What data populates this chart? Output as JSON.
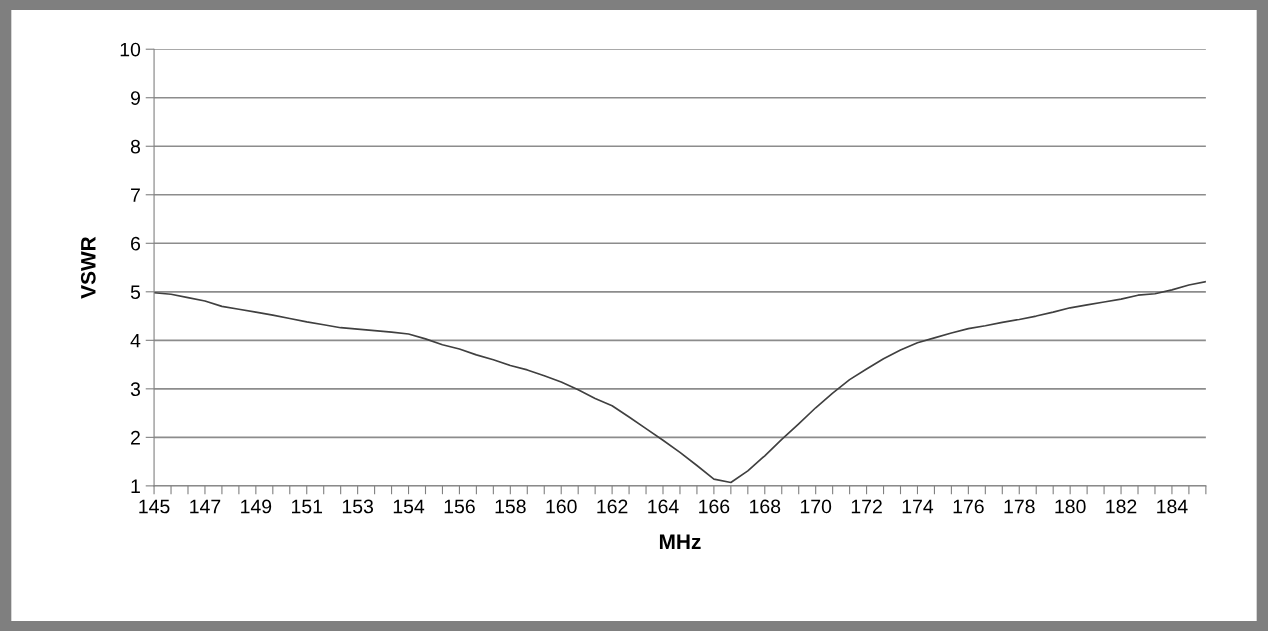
{
  "chart_data": {
    "type": "line",
    "xlabel": "MHz",
    "ylabel": "VSWR",
    "categories": [
      "145",
      null,
      null,
      "147",
      null,
      null,
      "149",
      null,
      null,
      "151",
      null,
      null,
      "153",
      null,
      null,
      "154",
      null,
      null,
      "156",
      null,
      null,
      "158",
      null,
      null,
      "160",
      null,
      null,
      "162",
      null,
      null,
      "164",
      null,
      null,
      "166",
      null,
      null,
      "168",
      null,
      null,
      "170",
      null,
      null,
      "172",
      null,
      null,
      "174",
      null,
      null,
      "176",
      null,
      null,
      "178",
      null,
      null,
      "180",
      null,
      null,
      "182",
      null,
      null,
      "184",
      null,
      null
    ],
    "series": [
      {
        "color": "#404040",
        "values": [
          4.98,
          4.95,
          4.88,
          4.81,
          4.7,
          4.64,
          4.58,
          4.52,
          4.45,
          4.38,
          4.32,
          4.26,
          4.23,
          4.2,
          4.17,
          4.13,
          4.03,
          3.91,
          3.82,
          3.7,
          3.6,
          3.48,
          3.39,
          3.27,
          3.14,
          2.98,
          2.8,
          2.65,
          2.42,
          2.18,
          1.94,
          1.69,
          1.42,
          1.14,
          1.07,
          1.31,
          1.62,
          1.96,
          2.28,
          2.61,
          2.91,
          3.19,
          3.41,
          3.62,
          3.8,
          3.95,
          4.05,
          4.15,
          4.24,
          4.3,
          4.37,
          4.43,
          4.5,
          4.58,
          4.67,
          4.73,
          4.79,
          4.85,
          4.93,
          4.96,
          5.04,
          5.14,
          5.21
        ]
      }
    ],
    "ylim": [
      1,
      10
    ],
    "yticks": [
      1,
      2,
      3,
      4,
      5,
      6,
      7,
      8,
      9,
      10
    ],
    "grid": "y",
    "marker": "none",
    "line_style": "solid"
  }
}
